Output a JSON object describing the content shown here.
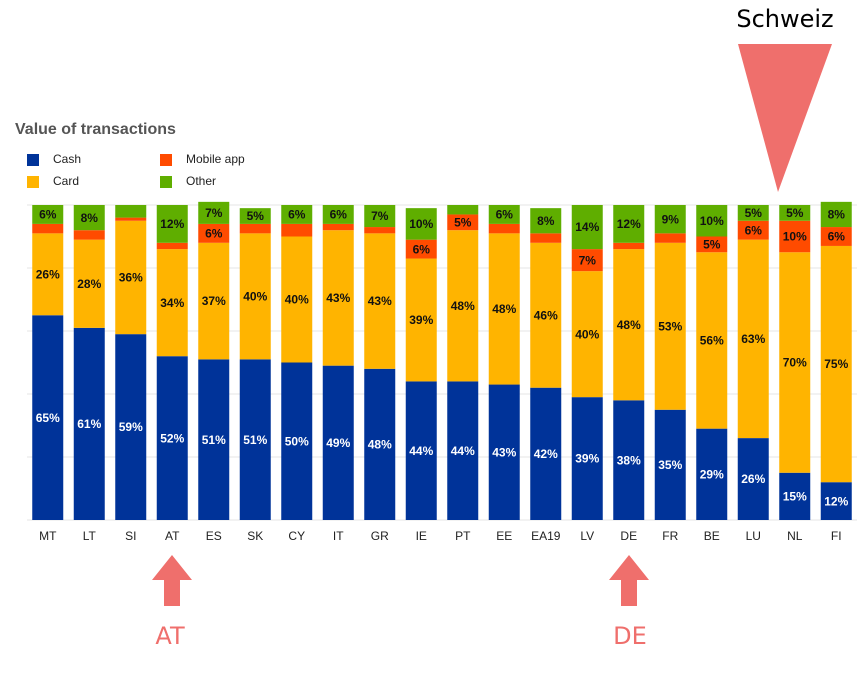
{
  "chart_data": {
    "type": "stacked_bar",
    "title": "Value of transactions",
    "categories": [
      "MT",
      "LT",
      "SI",
      "AT",
      "ES",
      "SK",
      "CY",
      "IT",
      "GR",
      "IE",
      "PT",
      "EE",
      "EA19",
      "LV",
      "DE",
      "FR",
      "BE",
      "LU",
      "NL",
      "FI"
    ],
    "series": [
      {
        "name": "Cash",
        "color": "#003399",
        "values": [
          65,
          61,
          59,
          52,
          51,
          51,
          50,
          49,
          48,
          44,
          44,
          43,
          42,
          39,
          38,
          35,
          29,
          26,
          15,
          12
        ],
        "value_labels": [
          "65%",
          "61%",
          "59%",
          "52%",
          "51%",
          "51%",
          "50%",
          "49%",
          "48%",
          "44%",
          "44%",
          "43%",
          "42%",
          "39%",
          "38%",
          "35%",
          "29%",
          "26%",
          "15%",
          "12%"
        ]
      },
      {
        "name": "Card",
        "color": "#ffb400",
        "values": [
          26,
          28,
          36,
          34,
          37,
          40,
          40,
          43,
          43,
          39,
          48,
          48,
          46,
          40,
          48,
          53,
          56,
          63,
          70,
          75
        ],
        "value_labels": [
          "26%",
          "28%",
          "36%",
          "34%",
          "37%",
          "40%",
          "40%",
          "43%",
          "43%",
          "39%",
          "48%",
          "48%",
          "46%",
          "40%",
          "48%",
          "53%",
          "56%",
          "63%",
          "70%",
          "75%"
        ]
      },
      {
        "name": "Mobile app",
        "color": "#ff4b00",
        "values": [
          3,
          3,
          1,
          2,
          6,
          3,
          4,
          2,
          2,
          6,
          5,
          3,
          3,
          7,
          2,
          3,
          5,
          6,
          10,
          6
        ],
        "value_labels": [
          null,
          null,
          null,
          null,
          "6%",
          null,
          null,
          null,
          null,
          "6%",
          "5%",
          null,
          null,
          "7%",
          null,
          null,
          "5%",
          "6%",
          "10%",
          "6%"
        ]
      },
      {
        "name": "Other",
        "color": "#5fae00",
        "values": [
          6,
          8,
          4,
          12,
          7,
          5,
          6,
          6,
          7,
          10,
          3,
          6,
          8,
          14,
          12,
          9,
          10,
          5,
          5,
          8
        ],
        "value_labels": [
          "6%",
          "8%",
          null,
          "12%",
          "7%",
          "5%",
          "6%",
          "6%",
          "7%",
          "10%",
          null,
          "6%",
          "8%",
          "14%",
          "12%",
          "9%",
          "10%",
          "5%",
          "5%",
          "8%"
        ]
      }
    ],
    "ylim": [
      0,
      100
    ],
    "yticks": [
      0,
      20,
      40,
      60,
      80,
      100
    ],
    "grid": true,
    "annotations": [
      "Schweiz",
      "AT",
      "DE"
    ]
  }
}
